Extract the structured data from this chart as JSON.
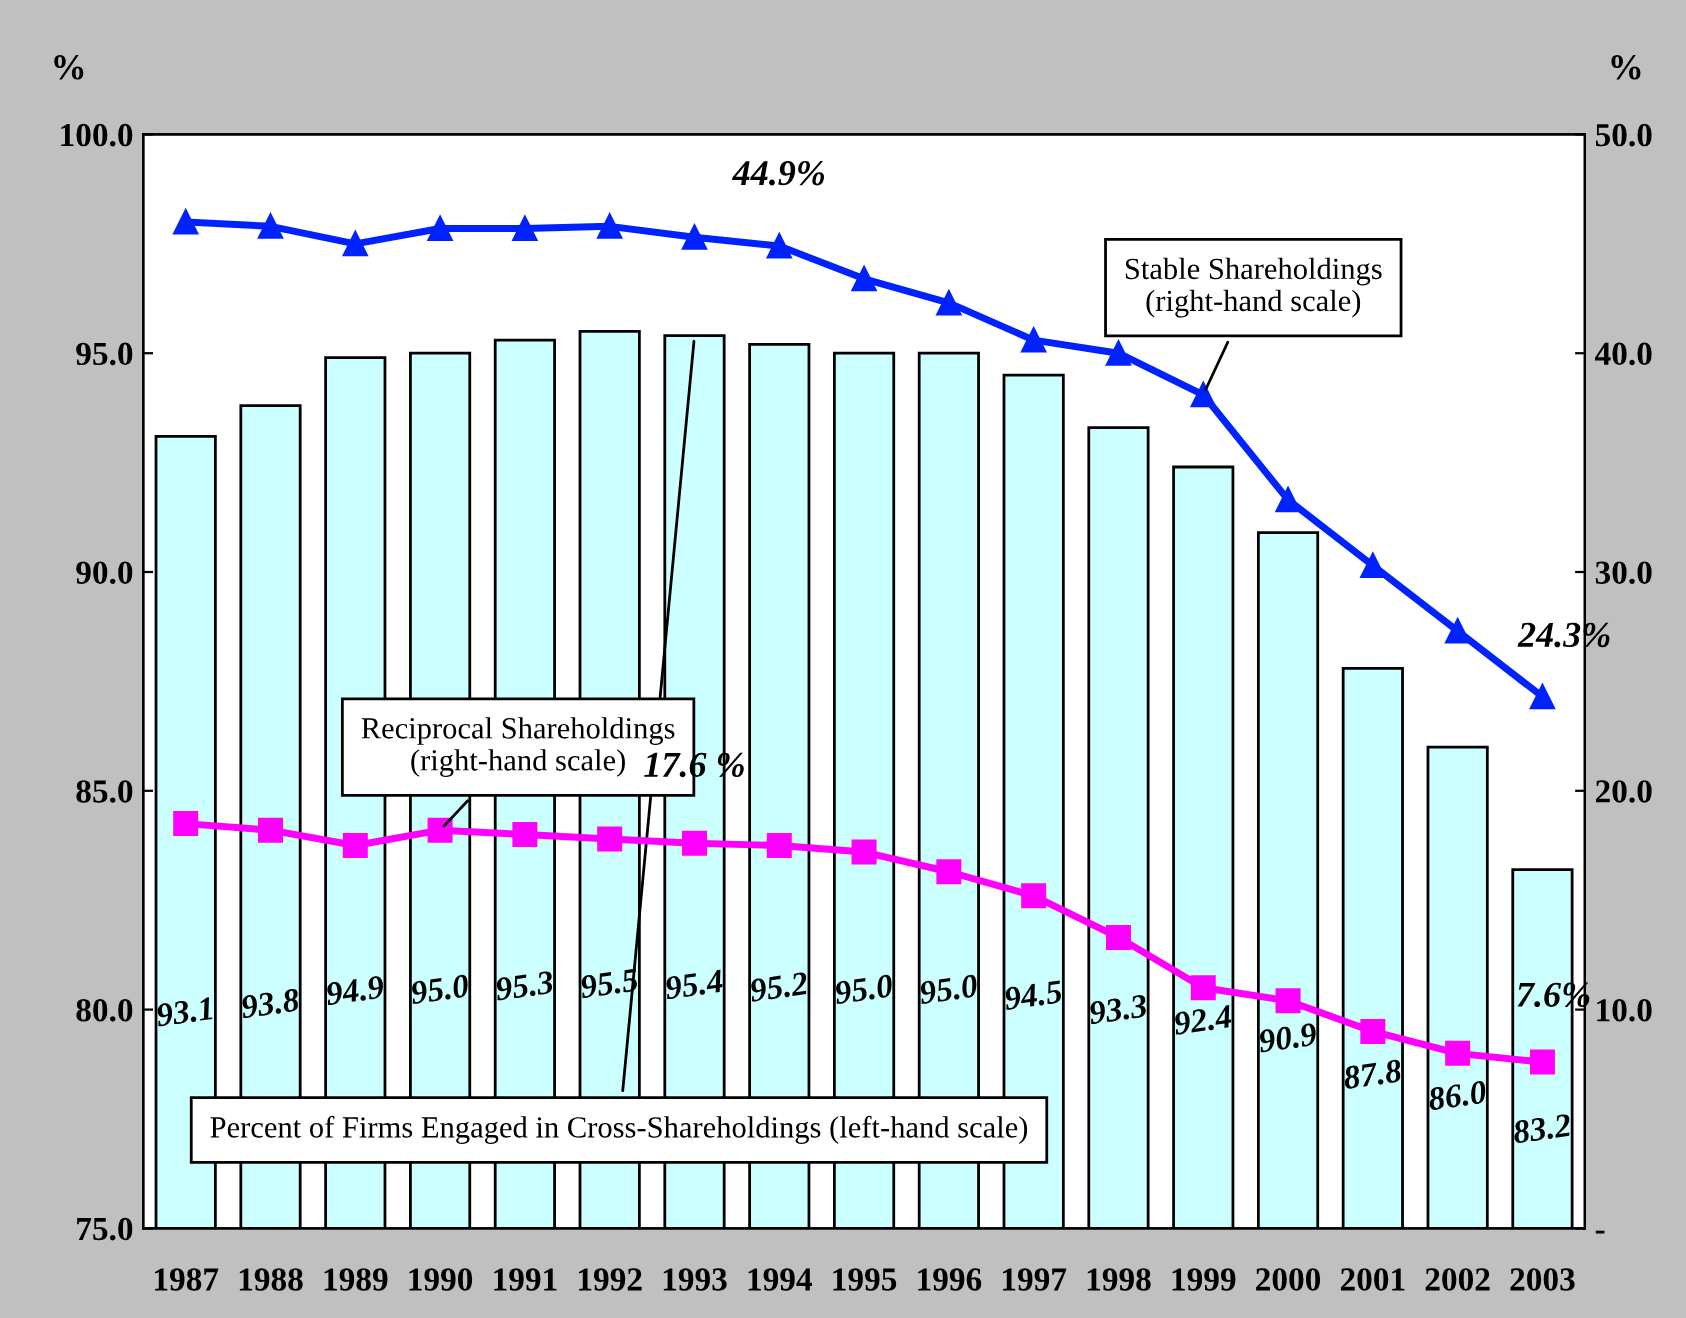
{
  "chart_data": {
    "type": "bar",
    "categories": [
      "1987",
      "1988",
      "1989",
      "1990",
      "1991",
      "1992",
      "1993",
      "1994",
      "1995",
      "1996",
      "1997",
      "1998",
      "1999",
      "2000",
      "2001",
      "2002",
      "2003"
    ],
    "ylabel": "%",
    "y2label": "%",
    "ylim": [
      75,
      100
    ],
    "yticks": [
      {
        "value": 75,
        "label": "75.0"
      },
      {
        "value": 80,
        "label": "80.0"
      },
      {
        "value": 85,
        "label": "85.0"
      },
      {
        "value": 90,
        "label": "90.0"
      },
      {
        "value": 95,
        "label": "95.0"
      },
      {
        "value": 100,
        "label": "100.0"
      }
    ],
    "y2lim": [
      0,
      50
    ],
    "y2ticks": [
      {
        "value": 0,
        "label": "-"
      },
      {
        "value": 10,
        "label": "10.0"
      },
      {
        "value": 20,
        "label": "20.0"
      },
      {
        "value": 30,
        "label": "30.0"
      },
      {
        "value": 40,
        "label": "40.0"
      },
      {
        "value": 50,
        "label": "50.0"
      }
    ],
    "grid": false,
    "legend": false,
    "series": [
      {
        "name": "Percent of Firms Engaged in Cross-Shareholdings (left-hand scale)",
        "color": "#ccffff",
        "values": [
          93.1,
          93.8,
          94.9,
          95.0,
          95.3,
          95.5,
          95.4,
          95.2,
          95.0,
          95.0,
          94.5,
          93.3,
          92.4,
          90.9,
          87.8,
          86.0,
          83.2
        ],
        "value_labels": [
          "93.1",
          "93.8",
          "94.9",
          "95.0",
          "95.3",
          "95.5",
          "95.4",
          "95.2",
          "95.0",
          "95.0",
          "94.5",
          "93.3",
          "92.4",
          "90.9",
          "87.8",
          "86.0",
          "83.2"
        ]
      },
      {
        "name": "Stable Shareholdings\n(right-hand scale)",
        "type": "line",
        "axis": "y2",
        "color": "#0022ff",
        "marker": "triangle",
        "values": [
          46.0,
          45.8,
          45.0,
          45.7,
          45.7,
          45.8,
          45.3,
          44.9,
          43.4,
          42.3,
          40.6,
          40.0,
          38.1,
          33.3,
          30.3,
          27.3,
          24.3
        ]
      },
      {
        "name": "Reciprocal Shareholdings\n(right-hand scale)",
        "type": "line",
        "axis": "y2",
        "color": "#ff00ff",
        "marker": "square",
        "values": [
          18.5,
          18.2,
          17.5,
          18.2,
          18.0,
          17.8,
          17.6,
          17.5,
          17.2,
          16.3,
          15.2,
          13.3,
          11.0,
          10.4,
          9.0,
          8.0,
          7.6
        ]
      }
    ],
    "annotations": [
      "44.9%",
      "24.3%",
      "17.6 %",
      "7.6%"
    ]
  }
}
